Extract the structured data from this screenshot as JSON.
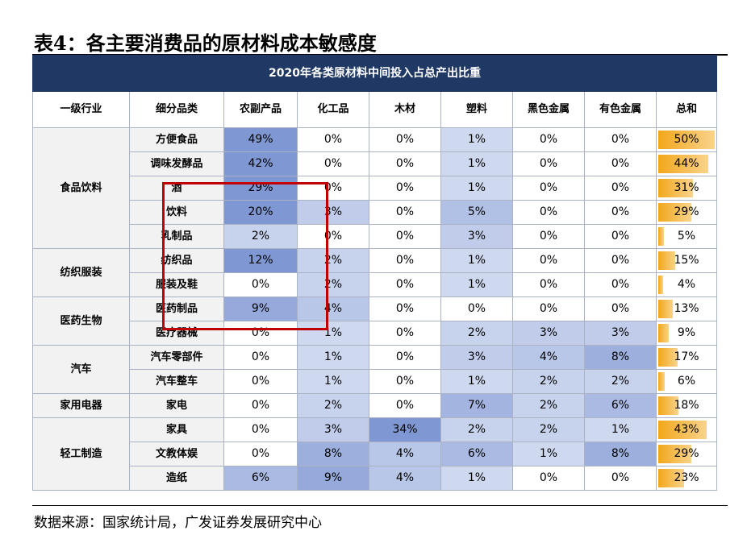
{
  "title": "表4：各主要消费品的原材料成本敏感度",
  "table": {
    "banner": "2020年各类原材料中间投入占总产出比重",
    "headers": [
      "一级行业",
      "细分品类",
      "农副产品",
      "化工品",
      "木材",
      "塑料",
      "黑色金属",
      "有色金属",
      "总和"
    ],
    "groups": [
      {
        "sector": "食品饮料",
        "rows": [
          {
            "item": "方便食品",
            "values": [
              "49%",
              "0%",
              "0%",
              "1%",
              "0%",
              "0%"
            ],
            "total": "50%",
            "total_pct": 50
          },
          {
            "item": "调味发酵品",
            "values": [
              "42%",
              "0%",
              "0%",
              "1%",
              "0%",
              "0%"
            ],
            "total": "44%",
            "total_pct": 44
          },
          {
            "item": "酒",
            "values": [
              "29%",
              "0%",
              "0%",
              "1%",
              "0%",
              "0%"
            ],
            "total": "31%",
            "total_pct": 31
          },
          {
            "item": "饮料",
            "values": [
              "20%",
              "3%",
              "0%",
              "5%",
              "0%",
              "0%"
            ],
            "total": "29%",
            "total_pct": 29
          },
          {
            "item": "乳制品",
            "values": [
              "2%",
              "0%",
              "0%",
              "3%",
              "0%",
              "0%"
            ],
            "total": "5%",
            "total_pct": 5
          }
        ]
      },
      {
        "sector": "纺织服装",
        "rows": [
          {
            "item": "纺织品",
            "values": [
              "12%",
              "2%",
              "0%",
              "1%",
              "0%",
              "0%"
            ],
            "total": "15%",
            "total_pct": 15
          },
          {
            "item": "服装及鞋",
            "values": [
              "0%",
              "2%",
              "0%",
              "1%",
              "0%",
              "0%"
            ],
            "total": "4%",
            "total_pct": 4
          }
        ]
      },
      {
        "sector": "医药生物",
        "rows": [
          {
            "item": "医药制品",
            "values": [
              "9%",
              "4%",
              "0%",
              "0%",
              "0%",
              "0%"
            ],
            "total": "13%",
            "total_pct": 13
          },
          {
            "item": "医疗器械",
            "values": [
              "0%",
              "1%",
              "0%",
              "2%",
              "3%",
              "3%"
            ],
            "total": "9%",
            "total_pct": 9
          }
        ]
      },
      {
        "sector": "汽车",
        "rows": [
          {
            "item": "汽车零部件",
            "values": [
              "0%",
              "1%",
              "0%",
              "3%",
              "4%",
              "8%"
            ],
            "total": "17%",
            "total_pct": 17
          },
          {
            "item": "汽车整车",
            "values": [
              "0%",
              "1%",
              "0%",
              "1%",
              "2%",
              "2%"
            ],
            "total": "6%",
            "total_pct": 6
          }
        ]
      },
      {
        "sector": "家用电器",
        "rows": [
          {
            "item": "家电",
            "values": [
              "0%",
              "2%",
              "0%",
              "7%",
              "2%",
              "6%"
            ],
            "total": "18%",
            "total_pct": 18
          }
        ]
      },
      {
        "sector": "轻工制造",
        "rows": [
          {
            "item": "家具",
            "values": [
              "0%",
              "3%",
              "34%",
              "2%",
              "2%",
              "1%"
            ],
            "total": "43%",
            "total_pct": 43
          },
          {
            "item": "文教体娱",
            "values": [
              "0%",
              "8%",
              "4%",
              "6%",
              "1%",
              "8%"
            ],
            "total": "29%",
            "total_pct": 29
          },
          {
            "item": "造纸",
            "values": [
              "6%",
              "9%",
              "4%",
              "1%",
              "0%",
              "0%"
            ],
            "total": "23%",
            "total_pct": 23
          }
        ]
      }
    ]
  },
  "colors": {
    "banner": "#1f3864",
    "highlight_box": "#c00000",
    "bar": "#f2a71a",
    "heat_low": "#ffffff",
    "heat_high": "#7f97d3"
  },
  "source": "数据来源：国家统计局，广发证券发展研究中心"
}
